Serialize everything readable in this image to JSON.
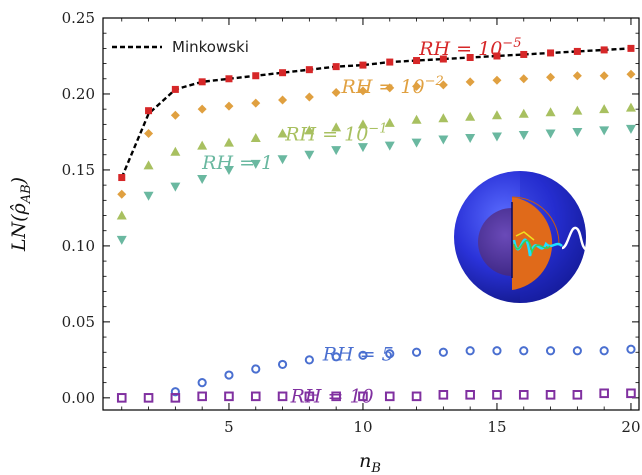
{
  "chart_data": {
    "type": "scatter",
    "xlabel": "n_B",
    "ylabel": "LN(ρ̂_AB)",
    "xlim": [
      0.3,
      20.3
    ],
    "ylim": [
      -0.008,
      0.25
    ],
    "xticks": [
      5,
      10,
      15,
      20
    ],
    "yticks": [
      0.0,
      0.05,
      0.1,
      0.15,
      0.2,
      0.25
    ],
    "ytick_labels": [
      "0.00",
      "0.05",
      "0.10",
      "0.15",
      "0.20",
      "0.25"
    ],
    "grid": false,
    "legend": {
      "position": "top-left",
      "entries": [
        "Minkowski"
      ]
    },
    "series": [
      {
        "name": "Minkowski",
        "style": "dashed-line",
        "color": "#000000",
        "x": [
          1,
          2,
          3,
          4,
          5,
          6,
          7,
          8,
          9,
          10,
          11,
          12,
          13,
          14,
          15,
          16,
          17,
          18,
          19,
          20
        ],
        "y": [
          0.145,
          0.187,
          0.203,
          0.208,
          0.21,
          0.212,
          0.214,
          0.216,
          0.218,
          0.219,
          0.221,
          0.222,
          0.223,
          0.224,
          0.225,
          0.226,
          0.227,
          0.228,
          0.229,
          0.23
        ]
      },
      {
        "name": "RH = 10^{-5}",
        "marker": "square-filled",
        "color": "#d62728",
        "x": [
          1,
          2,
          3,
          4,
          5,
          6,
          7,
          8,
          9,
          10,
          11,
          12,
          13,
          14,
          15,
          16,
          17,
          18,
          19,
          20
        ],
        "y": [
          0.145,
          0.189,
          0.203,
          0.208,
          0.21,
          0.212,
          0.214,
          0.216,
          0.218,
          0.219,
          0.221,
          0.222,
          0.223,
          0.224,
          0.225,
          0.226,
          0.227,
          0.228,
          0.229,
          0.23
        ]
      },
      {
        "name": "RH = 10^{-2}",
        "marker": "diamond",
        "color": "#e0a040",
        "x": [
          1,
          2,
          3,
          4,
          5,
          6,
          7,
          8,
          9,
          10,
          11,
          12,
          13,
          14,
          15,
          16,
          17,
          18,
          19,
          20
        ],
        "y": [
          0.134,
          0.174,
          0.186,
          0.19,
          0.192,
          0.194,
          0.196,
          0.198,
          0.201,
          0.202,
          0.204,
          0.205,
          0.206,
          0.208,
          0.209,
          0.21,
          0.211,
          0.212,
          0.212,
          0.213
        ]
      },
      {
        "name": "RH = 10^{-1}",
        "marker": "triangle-up",
        "color": "#a8c060",
        "x": [
          1,
          2,
          3,
          4,
          5,
          6,
          7,
          8,
          9,
          10,
          11,
          12,
          13,
          14,
          15,
          16,
          17,
          18,
          19,
          20
        ],
        "y": [
          0.12,
          0.153,
          0.162,
          0.166,
          0.168,
          0.171,
          0.174,
          0.176,
          0.178,
          0.18,
          0.181,
          0.183,
          0.184,
          0.185,
          0.186,
          0.187,
          0.188,
          0.189,
          0.19,
          0.191
        ]
      },
      {
        "name": "RH = 1",
        "marker": "triangle-down",
        "color": "#6ab8a0",
        "x": [
          1,
          2,
          3,
          4,
          5,
          6,
          7,
          8,
          9,
          10,
          11,
          12,
          13,
          14,
          15,
          16,
          17,
          18,
          19,
          20
        ],
        "y": [
          0.104,
          0.133,
          0.139,
          0.144,
          0.15,
          0.154,
          0.157,
          0.16,
          0.163,
          0.165,
          0.166,
          0.168,
          0.17,
          0.171,
          0.172,
          0.173,
          0.174,
          0.175,
          0.176,
          0.177
        ]
      },
      {
        "name": "RH = 5",
        "marker": "circle-open",
        "color": "#4a6fd0",
        "x": [
          3,
          4,
          5,
          6,
          7,
          8,
          9,
          10,
          11,
          12,
          13,
          14,
          15,
          16,
          17,
          18,
          19,
          20
        ],
        "y": [
          0.004,
          0.01,
          0.015,
          0.019,
          0.022,
          0.025,
          0.027,
          0.028,
          0.029,
          0.03,
          0.03,
          0.031,
          0.031,
          0.031,
          0.031,
          0.031,
          0.031,
          0.032
        ]
      },
      {
        "name": "RH = 10",
        "marker": "square-open",
        "color": "#8030a0",
        "x": [
          1,
          2,
          3,
          4,
          5,
          6,
          7,
          8,
          9,
          10,
          11,
          12,
          13,
          14,
          15,
          16,
          17,
          18,
          19,
          20
        ],
        "y": [
          0.0,
          0.0,
          0.0,
          0.001,
          0.001,
          0.001,
          0.001,
          0.001,
          0.001,
          0.001,
          0.001,
          0.001,
          0.002,
          0.002,
          0.002,
          0.002,
          0.002,
          0.002,
          0.003,
          0.003
        ]
      }
    ],
    "annotations": [
      {
        "base": "RH = 10",
        "sup": "−5",
        "color": "#d62728",
        "x": 12.1,
        "y": 0.2255
      },
      {
        "base": "RH = 10",
        "sup": "−2",
        "color": "#e0a040",
        "x": 9.2,
        "y": 0.2005
      },
      {
        "base": "RH = 10",
        "sup": "−1",
        "color": "#a8c060",
        "x": 7.1,
        "y": 0.1695
      },
      {
        "base": "RH = 1",
        "sup": "",
        "color": "#6ab8a0",
        "x": 4.0,
        "y": 0.1505
      },
      {
        "base": "RH = 5",
        "sup": "",
        "color": "#4a6fd0",
        "x": 8.5,
        "y": 0.0245
      },
      {
        "base": "RH = 10",
        "sup": "",
        "color": "#8030a0",
        "x": 7.3,
        "y": -0.003
      }
    ],
    "inset": {
      "description_icon": "black-hole-sphere-icon"
    }
  }
}
